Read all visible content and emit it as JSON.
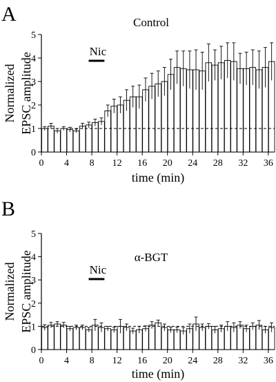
{
  "chart_data": [
    {
      "type": "bar",
      "panel_letter": "A",
      "title": "Control",
      "xlabel": "time (min)",
      "ylabel_lines": [
        "Normalized",
        "EPSC amplitude"
      ],
      "xlim": [
        0,
        37
      ],
      "ylim": [
        0,
        5
      ],
      "xticks": [
        0,
        4,
        8,
        12,
        16,
        20,
        24,
        28,
        32,
        36
      ],
      "yticks": [
        0,
        1,
        2,
        3,
        4,
        5
      ],
      "baseline": 1,
      "drug": {
        "label": "Nic",
        "start": 7.5,
        "end": 10
      },
      "x": [
        1,
        2,
        3,
        4,
        5,
        6,
        7,
        8,
        9,
        10,
        11,
        12,
        13,
        14,
        15,
        16,
        17,
        18,
        19,
        20,
        21,
        22,
        23,
        24,
        25,
        26,
        27,
        28,
        29,
        30,
        31,
        32,
        33,
        34,
        35,
        36,
        37
      ],
      "values": [
        1.0,
        1.1,
        0.9,
        1.0,
        0.95,
        0.9,
        1.1,
        1.15,
        1.25,
        1.3,
        1.75,
        1.95,
        2.0,
        2.2,
        2.35,
        2.35,
        2.65,
        2.8,
        2.9,
        3.0,
        3.3,
        3.6,
        3.55,
        3.5,
        3.5,
        3.45,
        3.8,
        3.7,
        3.8,
        3.9,
        3.85,
        3.55,
        3.55,
        3.6,
        3.5,
        3.6,
        3.85
      ],
      "errors": [
        0.08,
        0.12,
        0.1,
        0.08,
        0.1,
        0.08,
        0.12,
        0.12,
        0.15,
        0.15,
        0.25,
        0.3,
        0.35,
        0.45,
        0.45,
        0.5,
        0.5,
        0.55,
        0.55,
        0.6,
        0.65,
        0.7,
        0.75,
        0.8,
        0.85,
        0.8,
        0.8,
        0.65,
        0.7,
        0.75,
        0.8,
        0.65,
        0.7,
        0.75,
        0.8,
        0.85,
        0.8
      ]
    },
    {
      "type": "bar",
      "panel_letter": "B",
      "title": "α-BGT",
      "xlabel": "time (min)",
      "ylabel_lines": [
        "Normalized",
        "EPSC amplitude"
      ],
      "xlim": [
        0,
        37
      ],
      "ylim": [
        0,
        5
      ],
      "xticks": [
        0,
        4,
        8,
        12,
        16,
        20,
        24,
        28,
        32,
        36
      ],
      "yticks": [
        0,
        1,
        2,
        3,
        4,
        5
      ],
      "baseline": 1,
      "drug": {
        "label": "Nic",
        "start": 7.5,
        "end": 10
      },
      "x": [
        1,
        2,
        3,
        4,
        5,
        6,
        7,
        8,
        9,
        10,
        11,
        12,
        13,
        14,
        15,
        16,
        17,
        18,
        19,
        20,
        21,
        22,
        23,
        24,
        25,
        26,
        27,
        28,
        29,
        30,
        31,
        32,
        33,
        34,
        35,
        36,
        37
      ],
      "values": [
        0.95,
        1.05,
        1.1,
        1.05,
        0.9,
        0.95,
        0.95,
        0.85,
        1.05,
        0.95,
        0.9,
        0.85,
        1.0,
        0.95,
        0.8,
        0.85,
        0.9,
        1.05,
        1.15,
        0.95,
        0.85,
        0.85,
        0.8,
        0.9,
        1.1,
        0.95,
        1.0,
        0.85,
        0.9,
        1.0,
        0.95,
        1.05,
        0.9,
        1.0,
        1.05,
        0.85,
        0.95
      ],
      "errors": [
        0.12,
        0.12,
        0.1,
        0.12,
        0.1,
        0.1,
        0.1,
        0.1,
        0.25,
        0.2,
        0.1,
        0.12,
        0.3,
        0.15,
        0.12,
        0.15,
        0.12,
        0.15,
        0.12,
        0.15,
        0.12,
        0.12,
        0.15,
        0.2,
        0.3,
        0.15,
        0.12,
        0.15,
        0.15,
        0.2,
        0.2,
        0.15,
        0.15,
        0.15,
        0.2,
        0.15,
        0.2
      ]
    }
  ]
}
